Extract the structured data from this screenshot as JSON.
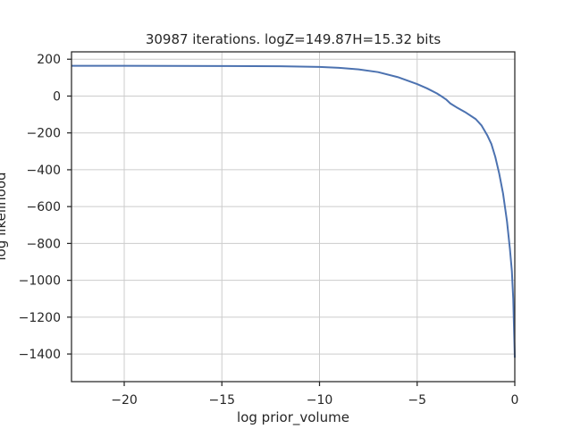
{
  "chart_data": {
    "type": "line",
    "title": "30987 iterations. logZ=149.87H=15.32 bits",
    "xlabel": "log prior_volume",
    "ylabel": "log likelihood",
    "xlim": [
      -22.7,
      0
    ],
    "ylim": [
      -1550,
      240
    ],
    "grid": true,
    "x_ticks": [
      -20,
      -15,
      -10,
      -5,
      0
    ],
    "x_tick_labels": [
      "−20",
      "−15",
      "−10",
      "−5",
      "0"
    ],
    "y_ticks": [
      200,
      0,
      -200,
      -400,
      -600,
      -800,
      -1000,
      -1200,
      -1400
    ],
    "y_tick_labels": [
      "200",
      "0",
      "−200",
      "−400",
      "−600",
      "−800",
      "−1000",
      "−1200",
      "−1400"
    ],
    "series": [
      {
        "color": "#4c72b0",
        "x": [
          -22.7,
          -20,
          -15,
          -12,
          -10,
          -9,
          -8,
          -7,
          -6,
          -5,
          -4.5,
          -4,
          -3.7,
          -3.5,
          -3.3,
          -3.0,
          -2.5,
          -2.0,
          -1.7,
          -1.4,
          -1.2,
          -1.0,
          -0.8,
          -0.6,
          -0.4,
          -0.25,
          -0.15,
          -0.08,
          -0.03,
          0
        ],
        "y": [
          164,
          164,
          163,
          162,
          158,
          153,
          145,
          130,
          103,
          65,
          42,
          15,
          -5,
          -20,
          -40,
          -60,
          -90,
          -125,
          -160,
          -215,
          -260,
          -330,
          -420,
          -530,
          -680,
          -830,
          -950,
          -1100,
          -1300,
          -1420
        ]
      }
    ]
  }
}
